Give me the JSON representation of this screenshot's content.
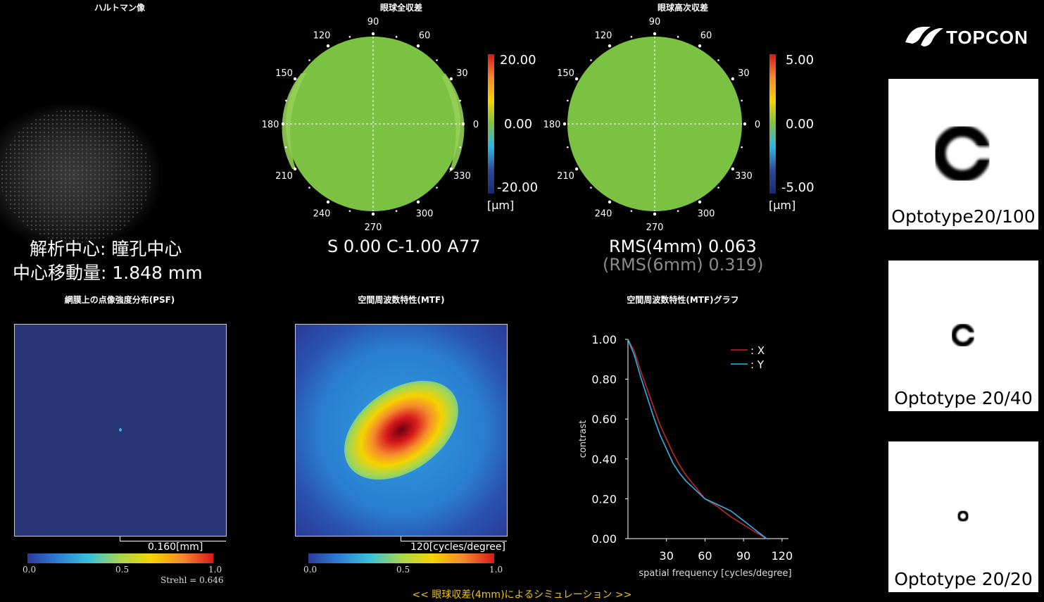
{
  "panels": {
    "hartmann": {
      "title": "ハルトマン像"
    },
    "total": {
      "title": "眼球全収差",
      "scale": [
        "20.00",
        "0.00",
        "-20.00"
      ],
      "unit": "[µm]",
      "result": "S 0.00 C-1.00 A77"
    },
    "higher": {
      "title": "眼球高次収差",
      "scale": [
        "5.00",
        "0.00",
        "-5.00"
      ],
      "unit": "[µm]",
      "rms1": "RMS(4mm)  0.063",
      "rms2": "(RMS(6mm)  0.319)"
    },
    "psf": {
      "title": "網膜上の点像強度分布(PSF)",
      "scale_text": "0.160[mm]",
      "ticks": [
        "0.0",
        "0.5",
        "1.0"
      ],
      "strehl": "Strehl = 0.646"
    },
    "mtf_map": {
      "title": "空間周波数特性(MTF)",
      "scale_text": "120[cycles/degree]",
      "ticks": [
        "0.0",
        "0.5",
        "1.0"
      ]
    },
    "mtf_graph": {
      "title": "空間周波数特性(MTF)グラフ"
    }
  },
  "analysis": {
    "center_line": "解析中心: 瞳孔中心",
    "shift_line": "中心移動量:  1.848 mm"
  },
  "polar_labels": [
    "90",
    "60",
    "30",
    "0",
    "330",
    "300",
    "270",
    "240",
    "210",
    "180",
    "150",
    "120"
  ],
  "brand": {
    "logo": "TOPCON"
  },
  "optotypes": [
    {
      "label": "Optotype20/100",
      "size": "large"
    },
    {
      "label": "Optotype 20/40",
      "size": "medium"
    },
    {
      "label": "Optotype 20/20",
      "size": "small"
    }
  ],
  "footer": {
    "text": "<< 眼球収差(4mm)によるシミュレーション >>"
  },
  "colors": {
    "map_green": "#7cc242",
    "footer": "#f0c400",
    "x_line": "#c0262c",
    "y_line": "#2fb4e6",
    "psf_bg": "#283573"
  },
  "chart_data": {
    "type": "line",
    "title": "空間周波数特性(MTF)グラフ",
    "xlabel": "spatial frequency [cycles/degree]",
    "ylabel": "contrast",
    "xlim": [
      0,
      125
    ],
    "ylim": [
      0,
      1.0
    ],
    "xticks": [
      30,
      60,
      90,
      120
    ],
    "yticks": [
      0.0,
      0.2,
      0.4,
      0.6,
      0.8,
      1.0
    ],
    "ytick_labels": [
      "0.00",
      "0.20",
      "0.40",
      "0.60",
      "0.80",
      "1.00"
    ],
    "legend": [
      "X",
      "Y"
    ],
    "legend_labels": [
      ": X",
      ": Y"
    ],
    "legend_position": "top-right",
    "series": [
      {
        "name": "X",
        "x": [
          0,
          5,
          10,
          15,
          20,
          25,
          30,
          35,
          40,
          45,
          50,
          55,
          60,
          70,
          80,
          90,
          100,
          108
        ],
        "y": [
          1.0,
          0.94,
          0.84,
          0.75,
          0.66,
          0.57,
          0.5,
          0.43,
          0.37,
          0.32,
          0.28,
          0.24,
          0.2,
          0.16,
          0.11,
          0.07,
          0.03,
          0.0
        ]
      },
      {
        "name": "Y",
        "x": [
          0,
          5,
          10,
          15,
          20,
          25,
          30,
          35,
          40,
          45,
          50,
          55,
          60,
          70,
          80,
          90,
          100,
          108
        ],
        "y": [
          1.0,
          0.92,
          0.81,
          0.71,
          0.61,
          0.52,
          0.45,
          0.38,
          0.33,
          0.29,
          0.26,
          0.23,
          0.2,
          0.17,
          0.14,
          0.09,
          0.04,
          0.0
        ]
      }
    ]
  }
}
